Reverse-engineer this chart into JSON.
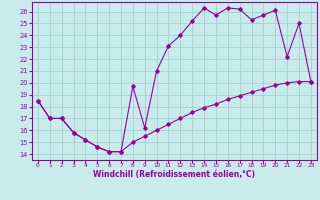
{
  "xlabel": "Windchill (Refroidissement éolien,°C)",
  "background_color": "#c8ecec",
  "grid_color": "#aad4d4",
  "line_color": "#990099",
  "xlim": [
    -0.5,
    23.5
  ],
  "ylim": [
    13.5,
    26.8
  ],
  "yticks": [
    14,
    15,
    16,
    17,
    18,
    19,
    20,
    21,
    22,
    23,
    24,
    25,
    26
  ],
  "xticks": [
    0,
    1,
    2,
    3,
    4,
    5,
    6,
    7,
    8,
    9,
    10,
    11,
    12,
    13,
    14,
    15,
    16,
    17,
    18,
    19,
    20,
    21,
    22,
    23
  ],
  "line1_x": [
    0,
    1,
    2,
    3,
    4,
    5,
    6,
    7,
    8,
    9,
    10,
    11,
    12,
    13,
    14,
    15,
    16,
    17,
    18,
    19,
    20,
    21,
    22,
    23
  ],
  "line1_y": [
    18.5,
    17.0,
    17.0,
    15.8,
    15.2,
    14.6,
    14.2,
    14.2,
    19.7,
    16.2,
    21.0,
    23.1,
    24.0,
    25.2,
    26.3,
    25.7,
    26.3,
    26.2,
    25.3,
    25.7,
    26.1,
    22.2,
    25.0,
    20.1
  ],
  "line2_x": [
    0,
    1,
    2,
    3,
    4,
    5,
    6,
    7,
    8,
    9,
    10,
    11,
    12,
    13,
    14,
    15,
    16,
    17,
    18,
    19,
    20,
    21,
    22,
    23
  ],
  "line2_y": [
    18.5,
    17.0,
    17.0,
    15.8,
    15.2,
    14.6,
    14.2,
    14.2,
    15.0,
    15.5,
    16.0,
    16.5,
    17.0,
    17.5,
    17.9,
    18.2,
    18.6,
    18.9,
    19.2,
    19.5,
    19.8,
    20.0,
    20.1,
    20.1
  ]
}
